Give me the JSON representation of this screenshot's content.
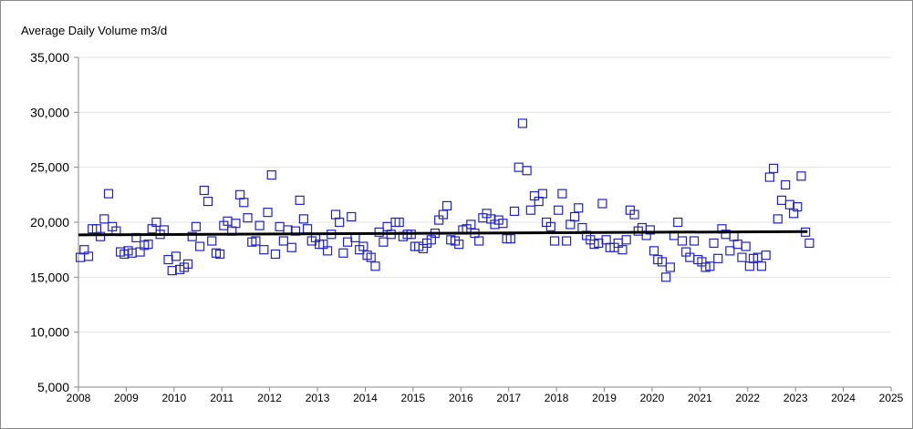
{
  "chart_data": {
    "type": "scatter",
    "title": "",
    "ylabel": "Average Daily Volume m3/d",
    "xlabel": "",
    "xlim": [
      2008,
      2025
    ],
    "ylim": [
      5000,
      35000
    ],
    "x_ticks": [
      "2008",
      "2009",
      "2010",
      "2011",
      "2012",
      "2013",
      "2014",
      "2015",
      "2016",
      "2017",
      "2018",
      "2019",
      "2020",
      "2021",
      "2022",
      "2023",
      "2024",
      "2025"
    ],
    "y_ticks": [
      "5,000",
      "10,000",
      "15,000",
      "20,000",
      "25,000",
      "30,000",
      "35,000"
    ],
    "y_tick_values": [
      5000,
      10000,
      15000,
      20000,
      25000,
      30000,
      35000
    ],
    "grid": "horizontal",
    "colors": {
      "points": "#2222cc",
      "trend": "#000000",
      "grid": "#e3e3e3",
      "axis": "#8a8a8a"
    },
    "trend_line": {
      "x": [
        2008.0,
        2023.25
      ],
      "y": [
        18850,
        19150
      ]
    },
    "series": [
      {
        "marker": "open-square",
        "points": [
          [
            2008.04,
            16800
          ],
          [
            2008.12,
            17500
          ],
          [
            2008.21,
            16900
          ],
          [
            2008.29,
            19400
          ],
          [
            2008.38,
            19400
          ],
          [
            2008.46,
            18700
          ],
          [
            2008.54,
            20300
          ],
          [
            2008.63,
            22600
          ],
          [
            2008.71,
            19600
          ],
          [
            2008.79,
            19200
          ],
          [
            2008.88,
            17300
          ],
          [
            2008.96,
            17100
          ],
          [
            2009.04,
            17400
          ],
          [
            2009.12,
            17200
          ],
          [
            2009.21,
            18600
          ],
          [
            2009.29,
            17300
          ],
          [
            2009.38,
            17900
          ],
          [
            2009.46,
            18000
          ],
          [
            2009.54,
            19400
          ],
          [
            2009.63,
            20000
          ],
          [
            2009.71,
            18900
          ],
          [
            2009.79,
            19300
          ],
          [
            2009.88,
            16600
          ],
          [
            2009.96,
            15600
          ],
          [
            2010.04,
            16900
          ],
          [
            2010.12,
            15700
          ],
          [
            2010.21,
            15900
          ],
          [
            2010.29,
            16200
          ],
          [
            2010.38,
            18700
          ],
          [
            2010.46,
            19600
          ],
          [
            2010.54,
            17800
          ],
          [
            2010.63,
            22900
          ],
          [
            2010.71,
            21900
          ],
          [
            2010.79,
            18300
          ],
          [
            2010.88,
            17200
          ],
          [
            2010.96,
            17100
          ],
          [
            2011.04,
            19700
          ],
          [
            2011.12,
            20100
          ],
          [
            2011.21,
            19200
          ],
          [
            2011.29,
            19900
          ],
          [
            2011.38,
            22500
          ],
          [
            2011.46,
            21800
          ],
          [
            2011.54,
            20400
          ],
          [
            2011.63,
            18200
          ],
          [
            2011.71,
            18300
          ],
          [
            2011.79,
            19700
          ],
          [
            2011.88,
            17500
          ],
          [
            2011.96,
            20900
          ],
          [
            2012.04,
            24300
          ],
          [
            2012.12,
            17100
          ],
          [
            2012.21,
            19600
          ],
          [
            2012.29,
            18300
          ],
          [
            2012.38,
            19300
          ],
          [
            2012.46,
            17700
          ],
          [
            2012.54,
            19200
          ],
          [
            2012.63,
            22000
          ],
          [
            2012.71,
            20300
          ],
          [
            2012.79,
            19400
          ],
          [
            2012.88,
            18300
          ],
          [
            2012.96,
            18600
          ],
          [
            2013.04,
            18000
          ],
          [
            2013.12,
            18000
          ],
          [
            2013.21,
            17400
          ],
          [
            2013.29,
            18900
          ],
          [
            2013.38,
            20700
          ],
          [
            2013.46,
            20000
          ],
          [
            2013.54,
            17200
          ],
          [
            2013.63,
            18200
          ],
          [
            2013.71,
            20500
          ],
          [
            2013.79,
            18600
          ],
          [
            2013.88,
            17500
          ],
          [
            2013.96,
            17800
          ],
          [
            2014.04,
            17000
          ],
          [
            2014.12,
            16800
          ],
          [
            2014.21,
            16000
          ],
          [
            2014.29,
            19100
          ],
          [
            2014.38,
            18200
          ],
          [
            2014.46,
            19600
          ],
          [
            2014.54,
            18900
          ],
          [
            2014.63,
            20000
          ],
          [
            2014.71,
            20000
          ],
          [
            2014.79,
            18700
          ],
          [
            2014.88,
            18900
          ],
          [
            2014.96,
            18900
          ],
          [
            2015.04,
            17800
          ],
          [
            2015.12,
            17800
          ],
          [
            2015.21,
            17600
          ],
          [
            2015.29,
            18100
          ],
          [
            2015.38,
            18400
          ],
          [
            2015.46,
            19000
          ],
          [
            2015.54,
            20200
          ],
          [
            2015.63,
            20700
          ],
          [
            2015.71,
            21500
          ],
          [
            2015.79,
            18400
          ],
          [
            2015.88,
            18300
          ],
          [
            2015.96,
            18000
          ],
          [
            2016.04,
            19300
          ],
          [
            2016.12,
            19400
          ],
          [
            2016.21,
            19800
          ],
          [
            2016.29,
            19000
          ],
          [
            2016.38,
            18300
          ],
          [
            2016.46,
            20400
          ],
          [
            2016.54,
            20800
          ],
          [
            2016.63,
            20300
          ],
          [
            2016.71,
            19800
          ],
          [
            2016.79,
            20200
          ],
          [
            2016.88,
            19900
          ],
          [
            2016.96,
            18500
          ],
          [
            2017.04,
            18500
          ],
          [
            2017.12,
            21000
          ],
          [
            2017.21,
            25000
          ],
          [
            2017.29,
            29000
          ],
          [
            2017.38,
            24700
          ],
          [
            2017.46,
            21100
          ],
          [
            2017.54,
            22400
          ],
          [
            2017.63,
            21900
          ],
          [
            2017.71,
            22600
          ],
          [
            2017.79,
            20000
          ],
          [
            2017.88,
            19600
          ],
          [
            2017.96,
            18300
          ],
          [
            2018.04,
            21100
          ],
          [
            2018.12,
            22600
          ],
          [
            2018.21,
            18300
          ],
          [
            2018.29,
            19800
          ],
          [
            2018.38,
            20500
          ],
          [
            2018.46,
            21300
          ],
          [
            2018.54,
            19500
          ],
          [
            2018.63,
            18800
          ],
          [
            2018.71,
            18400
          ],
          [
            2018.79,
            18000
          ],
          [
            2018.88,
            18100
          ],
          [
            2018.96,
            21700
          ],
          [
            2019.04,
            18400
          ],
          [
            2019.12,
            17700
          ],
          [
            2019.21,
            17700
          ],
          [
            2019.29,
            18100
          ],
          [
            2019.38,
            17500
          ],
          [
            2019.46,
            18400
          ],
          [
            2019.54,
            21100
          ],
          [
            2019.63,
            20700
          ],
          [
            2019.71,
            19200
          ],
          [
            2019.79,
            19500
          ],
          [
            2019.88,
            18800
          ],
          [
            2019.96,
            19300
          ],
          [
            2020.04,
            17400
          ],
          [
            2020.12,
            16600
          ],
          [
            2020.21,
            16400
          ],
          [
            2020.29,
            15000
          ],
          [
            2020.38,
            15900
          ],
          [
            2020.46,
            18800
          ],
          [
            2020.54,
            20000
          ],
          [
            2020.63,
            18300
          ],
          [
            2020.71,
            17300
          ],
          [
            2020.79,
            16800
          ],
          [
            2020.88,
            18300
          ],
          [
            2020.96,
            16600
          ],
          [
            2021.04,
            16400
          ],
          [
            2021.12,
            15900
          ],
          [
            2021.21,
            16000
          ],
          [
            2021.29,
            18100
          ],
          [
            2021.38,
            16700
          ],
          [
            2021.46,
            19400
          ],
          [
            2021.54,
            18900
          ],
          [
            2021.63,
            17400
          ],
          [
            2021.71,
            18700
          ],
          [
            2021.79,
            18000
          ],
          [
            2021.88,
            16800
          ],
          [
            2021.96,
            17800
          ],
          [
            2022.04,
            16000
          ],
          [
            2022.12,
            16700
          ],
          [
            2022.21,
            16800
          ],
          [
            2022.29,
            16000
          ],
          [
            2022.38,
            17000
          ],
          [
            2022.46,
            24100
          ],
          [
            2022.54,
            24900
          ],
          [
            2022.63,
            20300
          ],
          [
            2022.71,
            22000
          ],
          [
            2022.79,
            23400
          ],
          [
            2022.88,
            21600
          ],
          [
            2022.96,
            20800
          ],
          [
            2023.04,
            21400
          ],
          [
            2023.12,
            24200
          ],
          [
            2023.21,
            19100
          ],
          [
            2023.29,
            18100
          ]
        ]
      }
    ]
  }
}
